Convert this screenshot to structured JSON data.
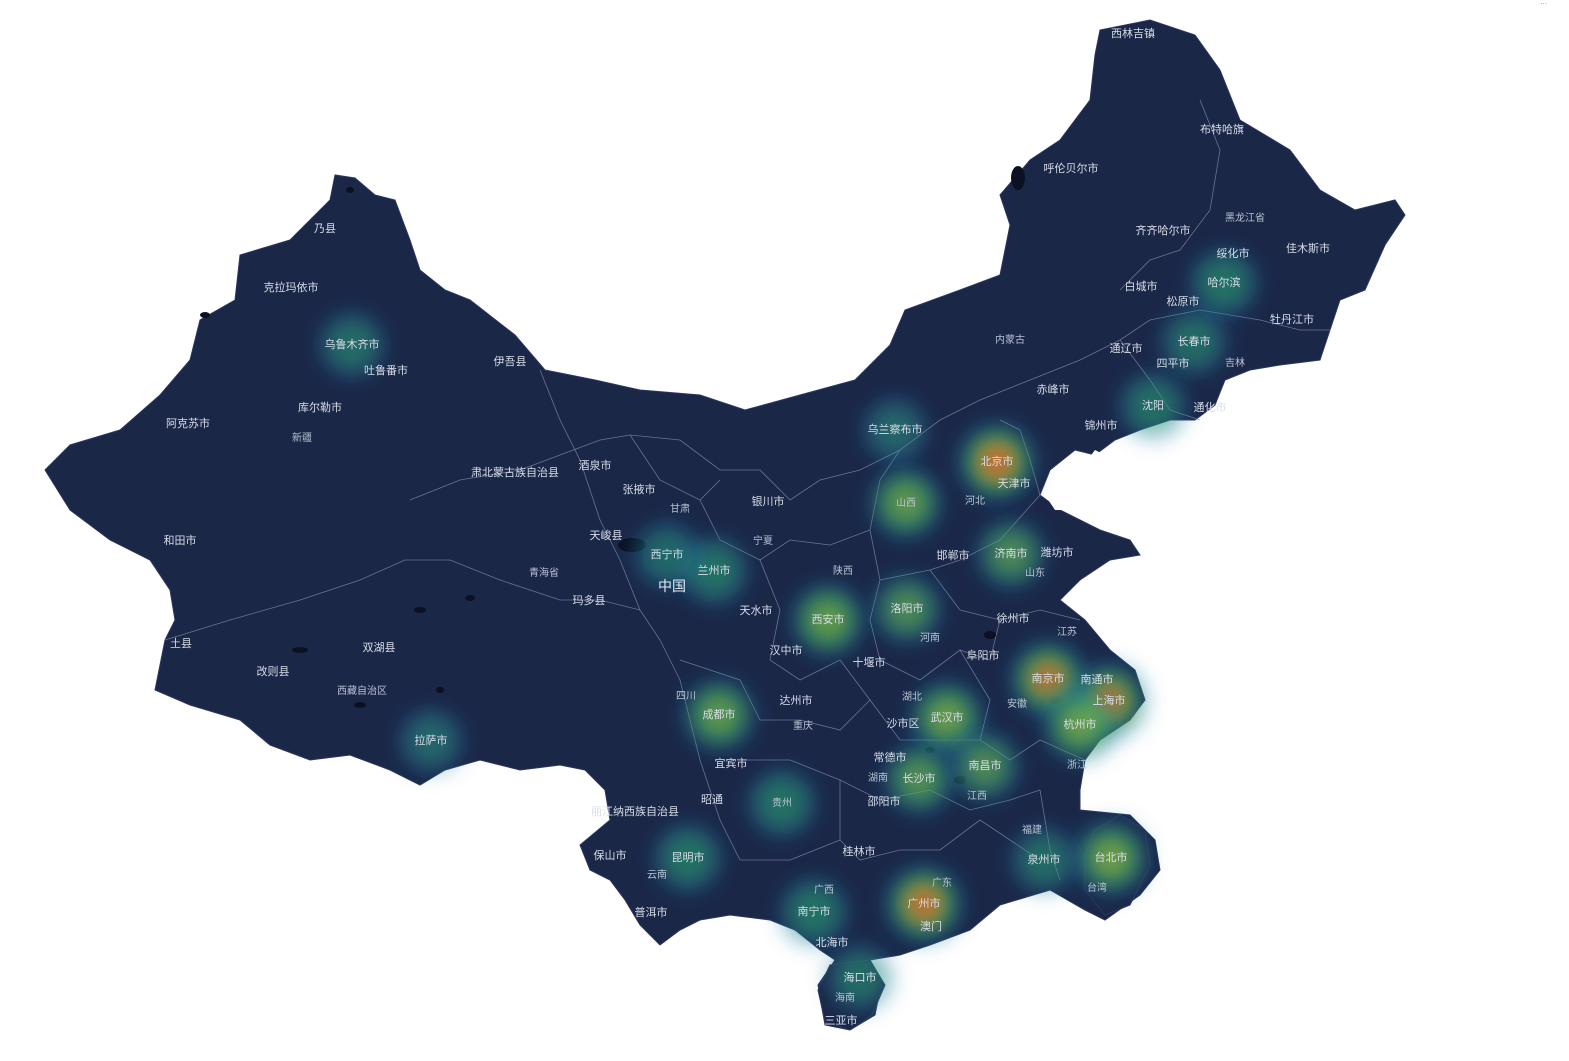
{
  "corner_text": "···",
  "map": {
    "land_color": "#1b2747",
    "boundary_color": "#8a93b4",
    "water_color": "#0b1122",
    "background": "#ffffff",
    "heat_colors": [
      "#2b6fc5",
      "#23b04f",
      "#d7c02a",
      "#e2472a"
    ],
    "labels": [
      {
        "id": "xilinjizhen",
        "text": "西林吉镇",
        "type": "city"
      },
      {
        "id": "hulunbeier",
        "text": "呼伦贝尔市",
        "type": "city"
      },
      {
        "id": "buteha",
        "text": "布特哈旗",
        "type": "city"
      },
      {
        "id": "heilongjiang",
        "text": "黑龙江省",
        "type": "prov"
      },
      {
        "id": "qiqihaer",
        "text": "齐齐哈尔市",
        "type": "city"
      },
      {
        "id": "suihua",
        "text": "绥化市",
        "type": "city"
      },
      {
        "id": "jiamusi",
        "text": "佳木斯市",
        "type": "city"
      },
      {
        "id": "baicheng",
        "text": "白城市",
        "type": "city"
      },
      {
        "id": "songyuan",
        "text": "松原市",
        "type": "city"
      },
      {
        "id": "haerbin",
        "text": "哈尔滨",
        "type": "city"
      },
      {
        "id": "mudanjiang",
        "text": "牡丹江市",
        "type": "city"
      },
      {
        "id": "neimenggu",
        "text": "内蒙古",
        "type": "prov"
      },
      {
        "id": "tongliao",
        "text": "通辽市",
        "type": "city"
      },
      {
        "id": "changchun",
        "text": "长春市",
        "type": "city"
      },
      {
        "id": "siping",
        "text": "四平市",
        "type": "city"
      },
      {
        "id": "jilin",
        "text": "吉林",
        "type": "prov"
      },
      {
        "id": "chifeng",
        "text": "赤峰市",
        "type": "city"
      },
      {
        "id": "shenyang",
        "text": "沈阳",
        "type": "city"
      },
      {
        "id": "tonghua",
        "text": "通化市",
        "type": "city"
      },
      {
        "id": "jinzhou",
        "text": "锦州市",
        "type": "city"
      },
      {
        "id": "wulanchabu",
        "text": "乌兰察布市",
        "type": "city"
      },
      {
        "id": "beijing",
        "text": "北京市",
        "type": "city"
      },
      {
        "id": "tianjin",
        "text": "天津市",
        "type": "city"
      },
      {
        "id": "shanxi",
        "text": "山西",
        "type": "prov"
      },
      {
        "id": "hebei",
        "text": "河北",
        "type": "prov"
      },
      {
        "id": "handan",
        "text": "邯郸市",
        "type": "city"
      },
      {
        "id": "jinan",
        "text": "济南市",
        "type": "city"
      },
      {
        "id": "weifang",
        "text": "潍坊市",
        "type": "city"
      },
      {
        "id": "shandong",
        "text": "山东",
        "type": "prov"
      },
      {
        "id": "luoyang",
        "text": "洛阳市",
        "type": "city"
      },
      {
        "id": "henan",
        "text": "河南",
        "type": "prov"
      },
      {
        "id": "xuzhou",
        "text": "徐州市",
        "type": "city"
      },
      {
        "id": "jiangsu",
        "text": "江苏",
        "type": "prov"
      },
      {
        "id": "fuyang",
        "text": "阜阳市",
        "type": "city"
      },
      {
        "id": "nanjing",
        "text": "南京市",
        "type": "city"
      },
      {
        "id": "nantong",
        "text": "南通市",
        "type": "city"
      },
      {
        "id": "shanghai",
        "text": "上海市",
        "type": "city"
      },
      {
        "id": "anhui",
        "text": "安徽",
        "type": "prov"
      },
      {
        "id": "hangzhou",
        "text": "杭州市",
        "type": "city"
      },
      {
        "id": "zhejiang",
        "text": "浙江",
        "type": "prov"
      },
      {
        "id": "hubei",
        "text": "湖北",
        "type": "prov"
      },
      {
        "id": "shashi",
        "text": "沙市区",
        "type": "city"
      },
      {
        "id": "wuhan",
        "text": "武汉市",
        "type": "city"
      },
      {
        "id": "changde",
        "text": "常德市",
        "type": "city"
      },
      {
        "id": "hunan",
        "text": "湖南",
        "type": "prov"
      },
      {
        "id": "changsha",
        "text": "长沙市",
        "type": "city"
      },
      {
        "id": "nanchang",
        "text": "南昌市",
        "type": "city"
      },
      {
        "id": "jiangxi",
        "text": "江西",
        "type": "prov"
      },
      {
        "id": "shaoyang",
        "text": "邵阳市",
        "type": "city"
      },
      {
        "id": "fujian",
        "text": "福建",
        "type": "prov"
      },
      {
        "id": "quanzhou",
        "text": "泉州市",
        "type": "city"
      },
      {
        "id": "taibei",
        "text": "台北市",
        "type": "city"
      },
      {
        "id": "taiwan",
        "text": "台湾",
        "type": "prov"
      },
      {
        "id": "guangdong",
        "text": "广东",
        "type": "prov"
      },
      {
        "id": "guangzhou",
        "text": "广州市",
        "type": "city"
      },
      {
        "id": "aomen",
        "text": "澳门",
        "type": "city"
      },
      {
        "id": "guilin",
        "text": "桂林市",
        "type": "city"
      },
      {
        "id": "guangxi",
        "text": "广西",
        "type": "prov"
      },
      {
        "id": "nanning",
        "text": "南宁市",
        "type": "city"
      },
      {
        "id": "beihai",
        "text": "北海市",
        "type": "city"
      },
      {
        "id": "haikou",
        "text": "海口市",
        "type": "city"
      },
      {
        "id": "hainan",
        "text": "海南",
        "type": "prov"
      },
      {
        "id": "sanya",
        "text": "三亚市",
        "type": "city"
      },
      {
        "id": "guizhou",
        "text": "贵州",
        "type": "prov"
      },
      {
        "id": "kunming",
        "text": "昆明市",
        "type": "city"
      },
      {
        "id": "yunnan",
        "text": "云南",
        "type": "prov"
      },
      {
        "id": "puer",
        "text": "普洱市",
        "type": "city"
      },
      {
        "id": "baoshan",
        "text": "保山市",
        "type": "city"
      },
      {
        "id": "lijiang",
        "text": "丽江纳西族自治县",
        "type": "city"
      },
      {
        "id": "zhaotong",
        "text": "昭通",
        "type": "city"
      },
      {
        "id": "yibin",
        "text": "宜宾市",
        "type": "city"
      },
      {
        "id": "chongqing",
        "text": "重庆",
        "type": "prov"
      },
      {
        "id": "dazhou",
        "text": "达州市",
        "type": "city"
      },
      {
        "id": "sichuan",
        "text": "四川",
        "type": "prov"
      },
      {
        "id": "chengdu",
        "text": "成都市",
        "type": "city"
      },
      {
        "id": "hanzhong",
        "text": "汉中市",
        "type": "city"
      },
      {
        "id": "shiyan",
        "text": "十堰市",
        "type": "city"
      },
      {
        "id": "xian",
        "text": "西安市",
        "type": "city"
      },
      {
        "id": "shaanxi",
        "text": "陕西",
        "type": "prov"
      },
      {
        "id": "tianshui",
        "text": "天水市",
        "type": "city"
      },
      {
        "id": "lanzhou",
        "text": "兰州市",
        "type": "city"
      },
      {
        "id": "xining",
        "text": "西宁市",
        "type": "city"
      },
      {
        "id": "zhongguo",
        "text": "中国",
        "type": "country"
      },
      {
        "id": "ningxia",
        "text": "宁夏",
        "type": "prov"
      },
      {
        "id": "yinchuan",
        "text": "银川市",
        "type": "city"
      },
      {
        "id": "gansu",
        "text": "甘肃",
        "type": "prov"
      },
      {
        "id": "zhangye",
        "text": "张掖市",
        "type": "city"
      },
      {
        "id": "jiuquan",
        "text": "酒泉市",
        "type": "city"
      },
      {
        "id": "subei",
        "text": "肃北蒙古族自治县",
        "type": "city"
      },
      {
        "id": "tianjunxian",
        "text": "天峻县",
        "type": "city"
      },
      {
        "id": "qinghai",
        "text": "青海省",
        "type": "prov"
      },
      {
        "id": "maduo",
        "text": "玛多县",
        "type": "city"
      },
      {
        "id": "shuanghu",
        "text": "双湖县",
        "type": "city"
      },
      {
        "id": "gaize",
        "text": "改则县",
        "type": "city"
      },
      {
        "id": "xizang",
        "text": "西藏自治区",
        "type": "prov"
      },
      {
        "id": "lasa",
        "text": "拉萨市",
        "type": "city"
      },
      {
        "id": "tuxian",
        "text": "土县",
        "type": "city"
      },
      {
        "id": "hetian",
        "text": "和田市",
        "type": "city"
      },
      {
        "id": "akesu",
        "text": "阿克苏市",
        "type": "city"
      },
      {
        "id": "xinjiang",
        "text": "新疆",
        "type": "prov"
      },
      {
        "id": "kuerle",
        "text": "库尔勒市",
        "type": "city"
      },
      {
        "id": "wulumuqi",
        "text": "乌鲁木齐市",
        "type": "city"
      },
      {
        "id": "tulufan",
        "text": "吐鲁番市",
        "type": "city"
      },
      {
        "id": "yiwu",
        "text": "伊吾县",
        "type": "city"
      },
      {
        "id": "kelamayi",
        "text": "克拉玛依市",
        "type": "city"
      },
      {
        "id": "bunaixian",
        "text": "乃县",
        "type": "city"
      }
    ],
    "heat_points": [
      {
        "id": "beijing",
        "intensity": 1.0
      },
      {
        "id": "guangzhou",
        "intensity": 0.95
      },
      {
        "id": "shanghai",
        "intensity": 0.85
      },
      {
        "id": "nanjing",
        "intensity": 0.85
      },
      {
        "id": "hangzhou",
        "intensity": 0.7
      },
      {
        "id": "taibei",
        "intensity": 0.75
      },
      {
        "id": "wuhan",
        "intensity": 0.7
      },
      {
        "id": "xian",
        "intensity": 0.65
      },
      {
        "id": "chengdu",
        "intensity": 0.6
      },
      {
        "id": "shanxi",
        "intensity": 0.6
      },
      {
        "id": "jinan",
        "intensity": 0.45
      },
      {
        "id": "luoyang",
        "intensity": 0.45
      },
      {
        "id": "changsha",
        "intensity": 0.5
      },
      {
        "id": "nanchang",
        "intensity": 0.45
      },
      {
        "id": "lanzhou",
        "intensity": 0.4
      },
      {
        "id": "guizhou",
        "intensity": 0.4
      },
      {
        "id": "kunming",
        "intensity": 0.4
      },
      {
        "id": "nanning",
        "intensity": 0.4
      },
      {
        "id": "shenyang",
        "intensity": 0.35
      },
      {
        "id": "haerbin",
        "intensity": 0.4
      },
      {
        "id": "changchun",
        "intensity": 0.3
      },
      {
        "id": "wulumuqi",
        "intensity": 0.3
      },
      {
        "id": "haikou",
        "intensity": 0.3
      },
      {
        "id": "wulanchabu",
        "intensity": 0.2
      },
      {
        "id": "lasa",
        "intensity": 0.2
      },
      {
        "id": "xining",
        "intensity": 0.25
      },
      {
        "id": "quanzhou",
        "intensity": 0.3
      }
    ]
  }
}
